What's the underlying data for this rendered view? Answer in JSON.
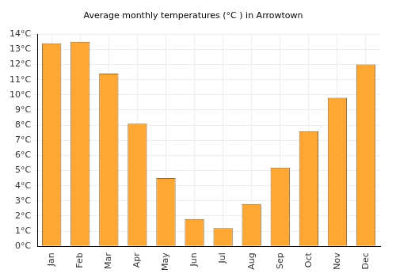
{
  "chart_data": {
    "type": "bar",
    "title": "Average monthly temperatures (°C ) in Arrowtown",
    "categories": [
      "Jan",
      "Feb",
      "Mar",
      "Apr",
      "May",
      "Jun",
      "Jul",
      "Aug",
      "Sep",
      "Oct",
      "Nov",
      "Dec"
    ],
    "values": [
      13.4,
      13.5,
      11.4,
      8.1,
      4.5,
      1.8,
      1.2,
      2.8,
      5.2,
      7.6,
      9.8,
      12.0
    ],
    "color": "#ffa733",
    "ylim": [
      0,
      14
    ],
    "yticks": [
      {
        "value": 0,
        "label": "0°C"
      },
      {
        "value": 1,
        "label": "1°C"
      },
      {
        "value": 2,
        "label": "2°C"
      },
      {
        "value": 3,
        "label": "3°C"
      },
      {
        "value": 4,
        "label": "4°C"
      },
      {
        "value": 5,
        "label": "5°C"
      },
      {
        "value": 6,
        "label": "6°C"
      },
      {
        "value": 7,
        "label": "7°C"
      },
      {
        "value": 8,
        "label": "8°C"
      },
      {
        "value": 9,
        "label": "9°C"
      },
      {
        "value": 10,
        "label": "10°C"
      },
      {
        "value": 11,
        "label": "11°C"
      },
      {
        "value": 12,
        "label": "12°C"
      },
      {
        "value": 13,
        "label": "13°C"
      },
      {
        "value": 14,
        "label": "14°C"
      }
    ],
    "grid": true
  }
}
